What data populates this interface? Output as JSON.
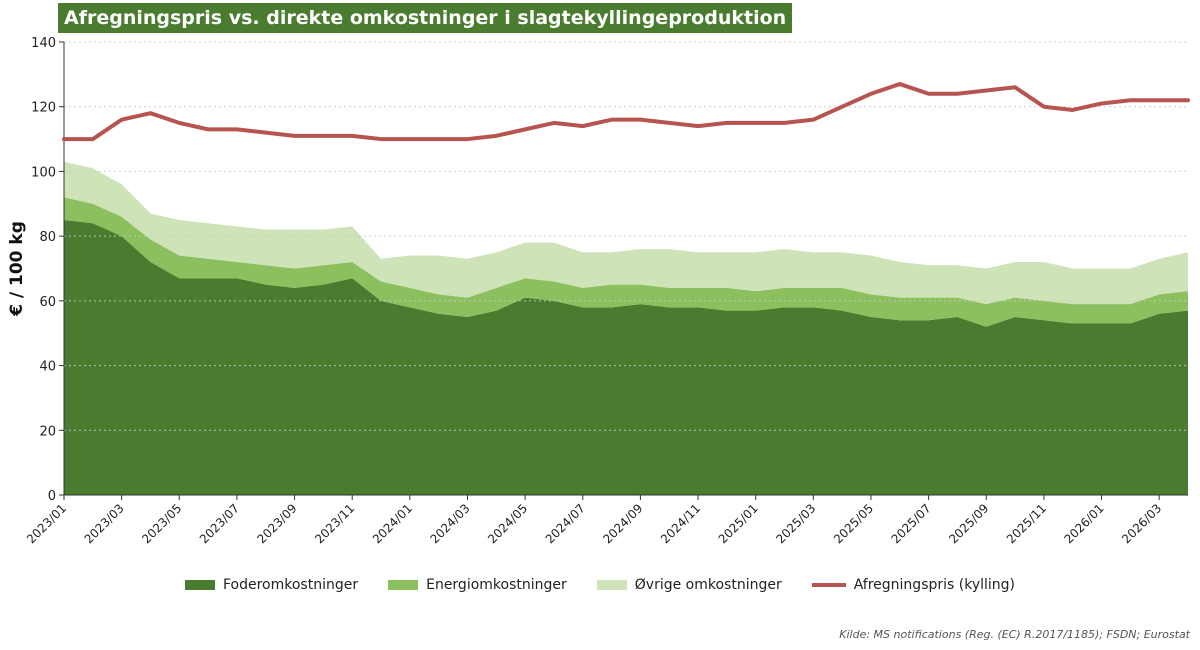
{
  "title": "Afregningspris vs. direkte omkostninger i slagtekyllingeproduktion",
  "source": "Kilde: MS notifications (Reg. (EC) R.2017/1185); FSDN; Eurostat",
  "colors": {
    "title_bg": "#4a7c2f",
    "feed": "#4a7c2f",
    "energy": "#8cbf5e",
    "other": "#cfe3b9",
    "price": "#b85450"
  },
  "chart_data": {
    "type": "area",
    "ylabel": "€ / 100 kg",
    "xlabel": "",
    "ylim": [
      0,
      140
    ],
    "yticks": [
      0,
      20,
      40,
      60,
      80,
      100,
      120,
      140
    ],
    "grid": true,
    "legend_position": "bottom",
    "x": [
      "2023/01",
      "2023/02",
      "2023/03",
      "2023/04",
      "2023/05",
      "2023/06",
      "2023/07",
      "2023/08",
      "2023/09",
      "2023/10",
      "2023/11",
      "2023/12",
      "2024/01",
      "2024/02",
      "2024/03",
      "2024/04",
      "2024/05",
      "2024/06",
      "2024/07",
      "2024/08",
      "2024/09",
      "2024/10",
      "2024/11",
      "2024/12",
      "2025/01",
      "2025/02",
      "2025/03",
      "2025/04",
      "2025/05",
      "2025/06",
      "2025/07",
      "2025/08",
      "2025/09",
      "2025/10",
      "2025/11",
      "2025/12",
      "2026/01",
      "2026/02",
      "2026/03",
      "2026/04"
    ],
    "xtick_labels": [
      "2023/01",
      "2023/03",
      "2023/05",
      "2023/07",
      "2023/09",
      "2023/11",
      "2024/01",
      "2024/03",
      "2024/05",
      "2024/07",
      "2024/09",
      "2024/11",
      "2025/01",
      "2025/03",
      "2025/05",
      "2025/07",
      "2025/09",
      "2025/11",
      "2026/01",
      "2026/03"
    ],
    "stack_series": [
      {
        "name": "Foderomkostninger",
        "values": [
          85,
          84,
          80,
          72,
          67,
          67,
          67,
          65,
          64,
          65,
          67,
          60,
          58,
          56,
          55,
          57,
          61,
          60,
          58,
          58,
          59,
          58,
          58,
          57,
          57,
          58,
          58,
          57,
          55,
          54,
          54,
          55,
          52,
          55,
          54,
          53,
          53,
          53,
          56,
          57
        ]
      },
      {
        "name": "Energiomkostninger",
        "values": [
          7,
          6,
          6,
          7,
          7,
          6,
          5,
          6,
          6,
          6,
          5,
          6,
          6,
          6,
          6,
          7,
          6,
          6,
          6,
          7,
          6,
          6,
          6,
          7,
          6,
          6,
          6,
          7,
          7,
          7,
          7,
          6,
          7,
          6,
          6,
          6,
          6,
          6,
          6,
          6
        ]
      },
      {
        "name": "Øvrige omkostninger",
        "values": [
          11,
          11,
          10,
          8,
          11,
          11,
          11,
          11,
          12,
          11,
          11,
          7,
          10,
          12,
          12,
          11,
          11,
          12,
          11,
          10,
          11,
          12,
          11,
          11,
          12,
          12,
          11,
          11,
          12,
          11,
          10,
          10,
          11,
          11,
          12,
          11,
          11,
          11,
          11,
          12
        ]
      }
    ],
    "line_series": [
      {
        "name": "Afregningspris (kylling)",
        "values": [
          110,
          110,
          116,
          118,
          115,
          113,
          113,
          112,
          111,
          111,
          111,
          110,
          110,
          110,
          110,
          111,
          113,
          115,
          114,
          116,
          116,
          115,
          114,
          115,
          115,
          115,
          116,
          120,
          124,
          127,
          124,
          124,
          125,
          126,
          120,
          119,
          121,
          122,
          122,
          122
        ]
      }
    ]
  }
}
